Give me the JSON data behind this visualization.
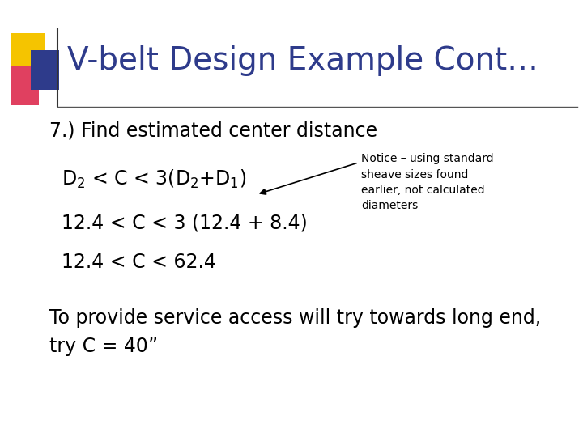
{
  "bg_color": "#ffffff",
  "title": "V-belt Design Example Cont…",
  "title_color": "#2E3B8B",
  "title_fontsize": 28,
  "header_line_color": "#333333",
  "subtitle": "7.) Find estimated center distance",
  "subtitle_fontsize": 17,
  "subtitle_color": "#000000",
  "line1": "D$_2$ < C < 3(D$_2$+D$_1$)",
  "line2": "12.4 < C < 3 (12.4 + 8.4)",
  "line3": "12.4 < C < 62.4",
  "body_fontsize": 17,
  "body_color": "#000000",
  "note_text": "Notice – using standard\nsheave sizes found\nearlier, not calculated\ndiameters",
  "note_fontsize": 10,
  "note_color": "#000000",
  "footer_text": "To provide service access will try towards long end,\ntry C = 40”",
  "footer_fontsize": 17,
  "footer_color": "#000000"
}
